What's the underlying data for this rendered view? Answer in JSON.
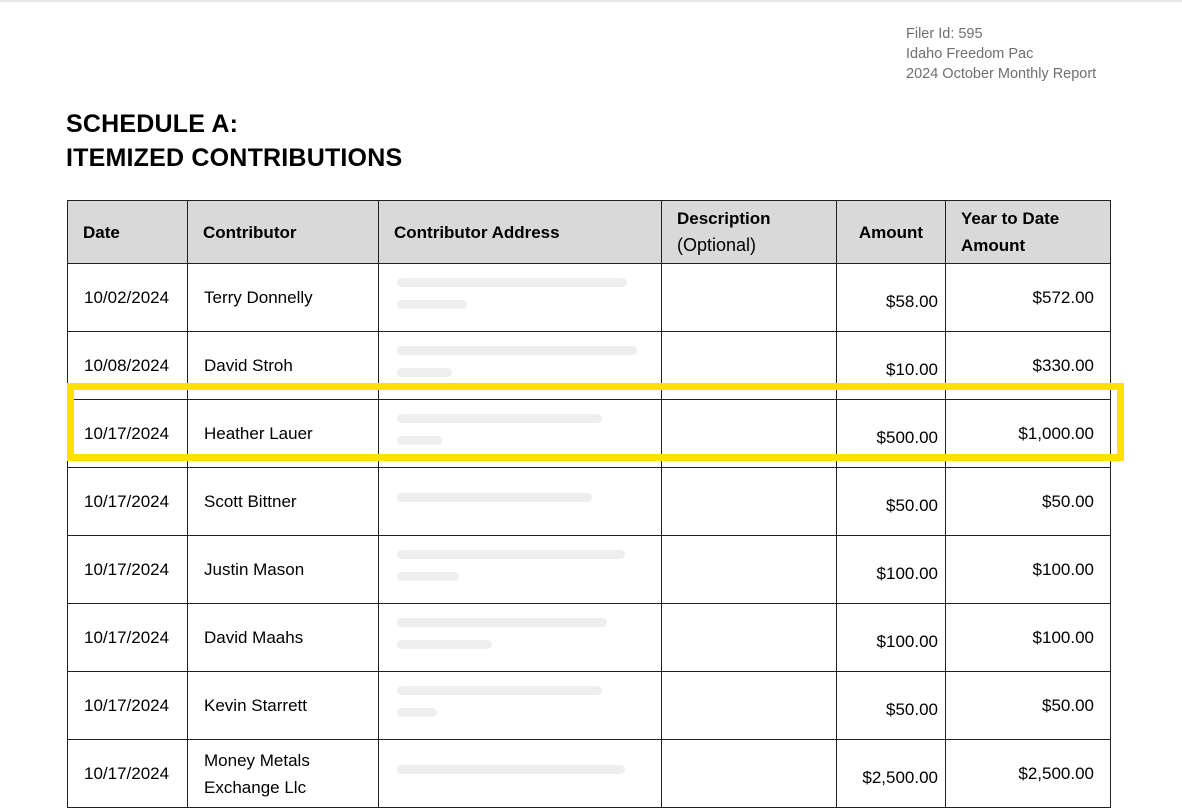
{
  "header": {
    "filer_id": "Filer Id: 595",
    "committee": "Idaho Freedom Pac",
    "report": "2024 October Monthly Report"
  },
  "title": {
    "line1": "SCHEDULE A:",
    "line2": "ITEMIZED CONTRIBUTIONS"
  },
  "columns": {
    "date": "Date",
    "contributor": "Contributor",
    "address": "Contributor Address",
    "description": "Description",
    "description_optional": "(Optional)",
    "amount": "Amount",
    "ytd_line1": "Year to Date",
    "ytd_line2": "Amount"
  },
  "rows": [
    {
      "date": "10/02/2024",
      "contributor": "Terry Donnelly",
      "address": "",
      "description": "",
      "amount": "$58.00",
      "ytd": "$572.00"
    },
    {
      "date": "10/08/2024",
      "contributor": "David Stroh",
      "address": "",
      "description": "",
      "amount": "$10.00",
      "ytd": "$330.00"
    },
    {
      "date": "10/17/2024",
      "contributor": "Heather Lauer",
      "address": "",
      "description": "",
      "amount": "$500.00",
      "ytd": "$1,000.00",
      "highlighted": true
    },
    {
      "date": "10/17/2024",
      "contributor": "Scott Bittner",
      "address": "",
      "description": "",
      "amount": "$50.00",
      "ytd": "$50.00"
    },
    {
      "date": "10/17/2024",
      "contributor": "Justin Mason",
      "address": "",
      "description": "",
      "amount": "$100.00",
      "ytd": "$100.00"
    },
    {
      "date": "10/17/2024",
      "contributor": "David Maahs",
      "address": "",
      "description": "",
      "amount": "$100.00",
      "ytd": "$100.00"
    },
    {
      "date": "10/17/2024",
      "contributor": "Kevin Starrett",
      "address": "",
      "description": "",
      "amount": "$50.00",
      "ytd": "$50.00"
    },
    {
      "date": "10/17/2024",
      "contributor_line1": "Money Metals",
      "contributor_line2": "Exchange Llc",
      "address": "",
      "description": "",
      "amount": "$2,500.00",
      "ytd": "$2,500.00"
    }
  ],
  "colors": {
    "header_bg": "#d9d9d9",
    "highlight": "#ffe100",
    "meta_text": "#6f6f6f"
  }
}
